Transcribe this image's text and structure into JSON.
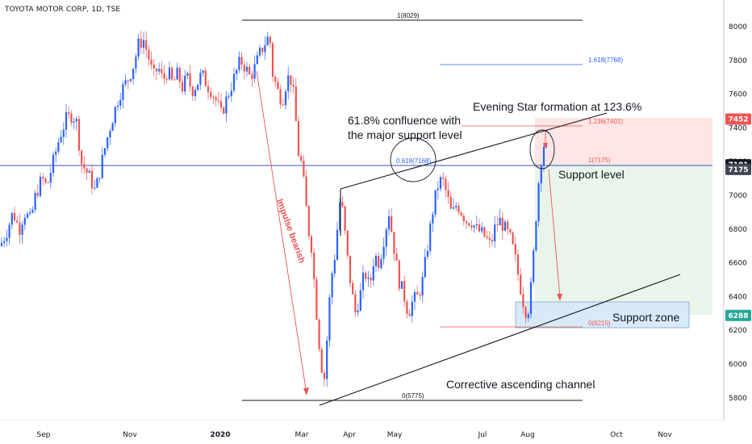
{
  "symbol": "TOYOTA MOTOR CORP, 1D, TSE",
  "colors": {
    "up": "#2962ff",
    "down": "#ef5350",
    "text": "#131722",
    "axis": "#b2b5be",
    "price_tag": "#131722",
    "red_tag": "#ef5350",
    "green_tag": "#26a69a",
    "grey_tag": "#434651"
  },
  "chart_data": {
    "type": "candlestick",
    "x_axis_labels": [
      "Sep",
      "Nov",
      "2020",
      "Mar",
      "Apr",
      "May",
      "Jul",
      "Aug",
      "Oct",
      "Nov"
    ],
    "y_ticks": [
      5800,
      6000,
      6200,
      6400,
      6600,
      6800,
      7000,
      7200,
      7400,
      7600,
      7800,
      8000
    ],
    "y_range": [
      5700,
      8110
    ],
    "price_tags": [
      {
        "value": 7452,
        "label": "7452",
        "style": "red"
      },
      {
        "value": 7181,
        "label": "7181",
        "style": "dark"
      },
      {
        "value": 7154,
        "label": "7175",
        "style": "grey"
      },
      {
        "value": 6288,
        "label": "6288",
        "style": "green"
      }
    ],
    "fib_levels": [
      {
        "label": "1(8029)",
        "value": 8029
      },
      {
        "label": "1.618(7768)",
        "value": 7768
      },
      {
        "label": "1.236(7401)",
        "value": 7401
      },
      {
        "label": "1(7175)",
        "value": 7175
      },
      {
        "label": "0.618(7168)",
        "value": 7168
      },
      {
        "label": "0(6215)",
        "value": 6215
      },
      {
        "label": "0(5775)",
        "value": 5775
      }
    ],
    "annotations": {
      "confluence_line1": "61.8% confluence with",
      "confluence_line2": "the major support level",
      "evening_star": "Evening Star formation at 123.6%",
      "support_level": "Support level",
      "support_zone": "Support zone",
      "channel": "Corrective ascending channel",
      "impulse": "Impulse bearish"
    },
    "path": [
      [
        0,
        6700
      ],
      [
        8,
        6780
      ],
      [
        16,
        6900
      ],
      [
        24,
        6800
      ],
      [
        30,
        6900
      ],
      [
        38,
        6850
      ],
      [
        44,
        7000
      ],
      [
        52,
        7100
      ],
      [
        58,
        7050
      ],
      [
        66,
        7200
      ],
      [
        74,
        7350
      ],
      [
        82,
        7450
      ],
      [
        90,
        7480
      ],
      [
        96,
        7420
      ],
      [
        100,
        7200
      ],
      [
        106,
        7150
      ],
      [
        112,
        7100
      ],
      [
        118,
        7020
      ],
      [
        124,
        7150
      ],
      [
        130,
        7280
      ],
      [
        136,
        7400
      ],
      [
        142,
        7500
      ],
      [
        148,
        7600
      ],
      [
        154,
        7650
      ],
      [
        160,
        7700
      ],
      [
        166,
        7780
      ],
      [
        172,
        7900
      ],
      [
        178,
        7920
      ],
      [
        184,
        7820
      ],
      [
        190,
        7700
      ],
      [
        196,
        7760
      ],
      [
        202,
        7680
      ],
      [
        208,
        7740
      ],
      [
        214,
        7660
      ],
      [
        220,
        7720
      ],
      [
        226,
        7640
      ],
      [
        232,
        7700
      ],
      [
        238,
        7620
      ],
      [
        244,
        7660
      ],
      [
        250,
        7720
      ],
      [
        256,
        7660
      ],
      [
        262,
        7620
      ],
      [
        268,
        7560
      ],
      [
        274,
        7480
      ],
      [
        280,
        7560
      ],
      [
        286,
        7640
      ],
      [
        292,
        7720
      ],
      [
        298,
        7800
      ],
      [
        304,
        7760
      ],
      [
        310,
        7700
      ],
      [
        316,
        7760
      ],
      [
        322,
        7840
      ],
      [
        328,
        7900
      ],
      [
        334,
        7950
      ],
      [
        338,
        7720
      ],
      [
        344,
        7620
      ],
      [
        350,
        7560
      ],
      [
        356,
        7700
      ],
      [
        362,
        7680
      ],
      [
        366,
        7480
      ],
      [
        370,
        7250
      ],
      [
        374,
        7180
      ],
      [
        378,
        7000
      ],
      [
        382,
        6800
      ],
      [
        386,
        6700
      ],
      [
        390,
        6450
      ],
      [
        394,
        6200
      ],
      [
        398,
        6000
      ],
      [
        402,
        5920
      ],
      [
        406,
        6200
      ],
      [
        410,
        6500
      ],
      [
        414,
        6600
      ],
      [
        418,
        6800
      ],
      [
        422,
        7000
      ],
      [
        426,
        6850
      ],
      [
        430,
        6650
      ],
      [
        434,
        6500
      ],
      [
        440,
        6300
      ],
      [
        446,
        6400
      ],
      [
        452,
        6550
      ],
      [
        458,
        6450
      ],
      [
        464,
        6650
      ],
      [
        470,
        6600
      ],
      [
        476,
        6750
      ],
      [
        482,
        6900
      ],
      [
        488,
        6700
      ],
      [
        494,
        6500
      ],
      [
        500,
        6420
      ],
      [
        506,
        6300
      ],
      [
        512,
        6380
      ],
      [
        518,
        6400
      ],
      [
        524,
        6500
      ],
      [
        530,
        6700
      ],
      [
        536,
        6900
      ],
      [
        542,
        7050
      ],
      [
        548,
        7100
      ],
      [
        554,
        7000
      ],
      [
        560,
        6880
      ],
      [
        566,
        6950
      ],
      [
        572,
        6900
      ],
      [
        578,
        6850
      ],
      [
        584,
        6850
      ],
      [
        590,
        6800
      ],
      [
        596,
        6780
      ],
      [
        602,
        6750
      ],
      [
        608,
        6700
      ],
      [
        614,
        6820
      ],
      [
        620,
        6850
      ],
      [
        626,
        6800
      ],
      [
        632,
        6750
      ],
      [
        638,
        6640
      ],
      [
        644,
        6480
      ],
      [
        650,
        6330
      ],
      [
        654,
        6300
      ],
      [
        658,
        6450
      ],
      [
        662,
        6700
      ],
      [
        666,
        7000
      ],
      [
        670,
        7200
      ],
      [
        674,
        7300
      ],
      [
        678,
        7250
      ]
    ]
  }
}
